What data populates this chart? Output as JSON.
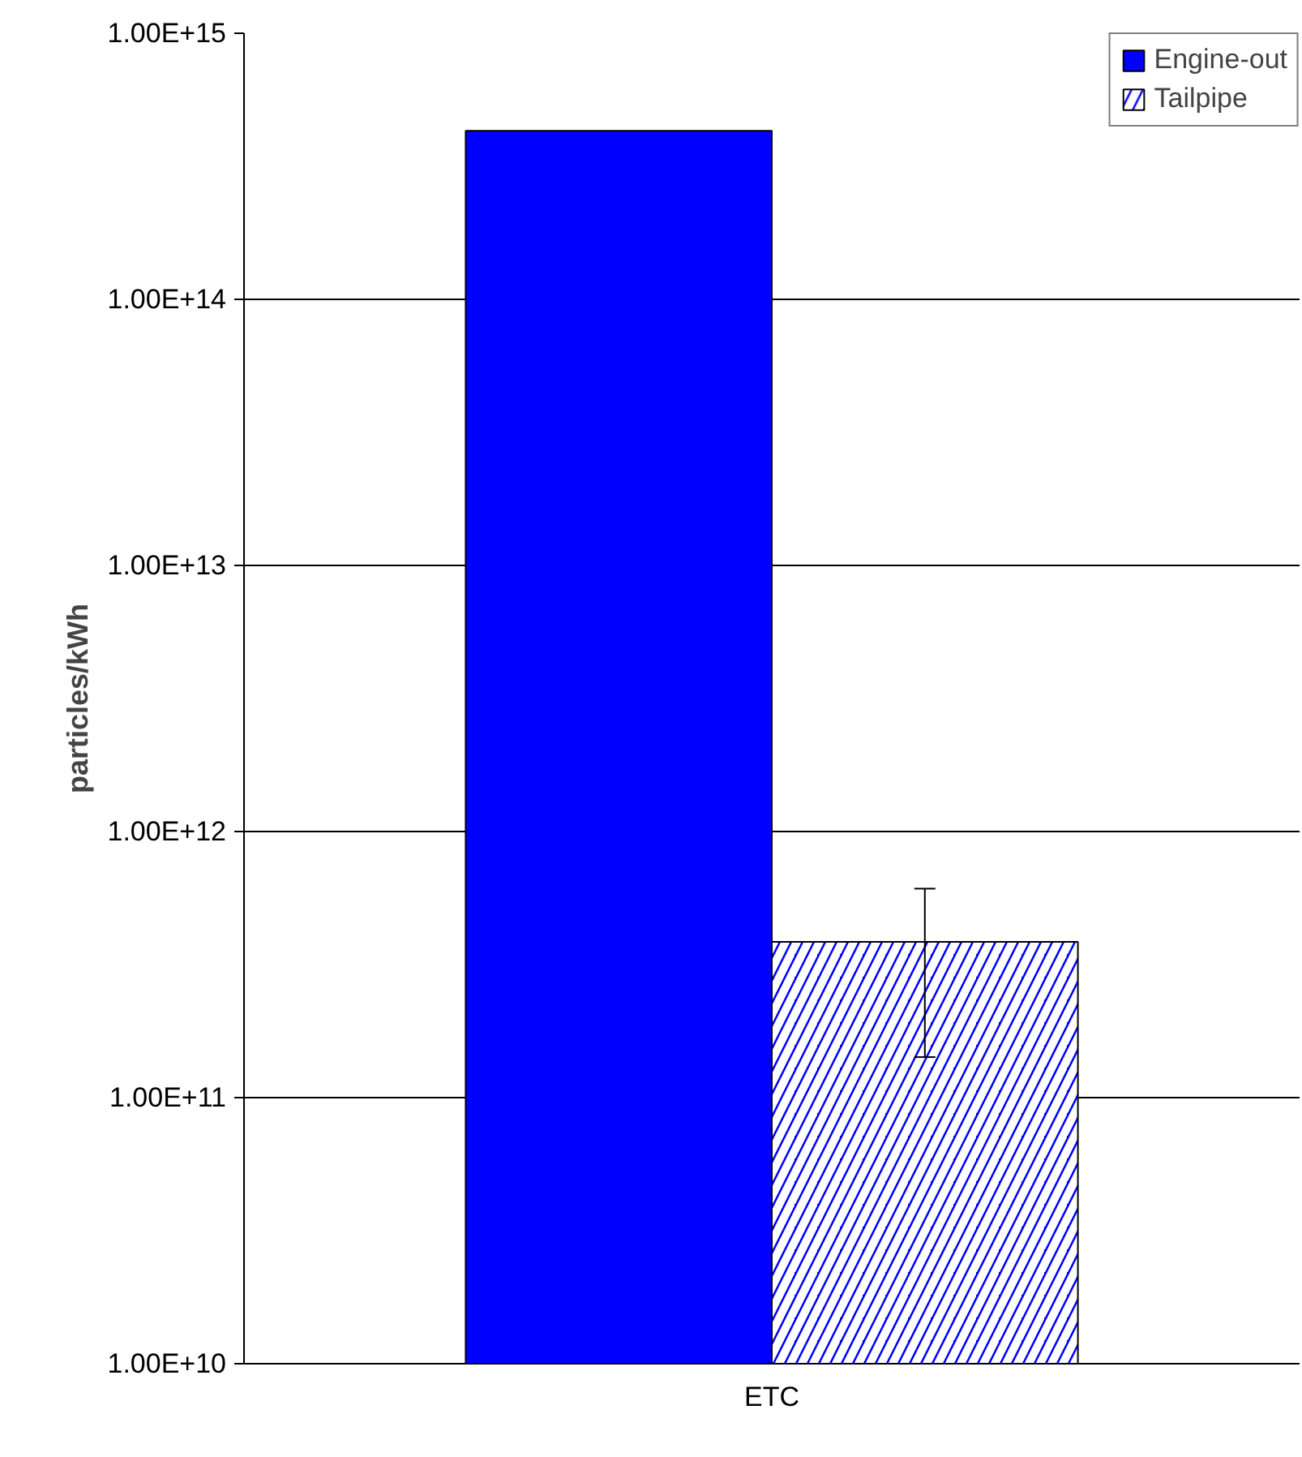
{
  "chart_data": {
    "type": "bar",
    "ylabel": "particles/kWh",
    "categories": [
      "ETC"
    ],
    "series": [
      {
        "name": "Engine-out",
        "color": "#0000ff",
        "values": [
          430000000000000.0
        ]
      },
      {
        "name": "Tailpipe",
        "color": "#0000ff",
        "values": [
          385000000000.0
        ],
        "errors": [
          [
            142000000000.0,
            610000000000.0
          ]
        ]
      }
    ],
    "log": true,
    "ylim": [
      10000000000.0,
      1000000000000000.0
    ],
    "yticks": [
      {
        "value": 10000000000.0,
        "label": "1.00E+10"
      },
      {
        "value": 100000000000.0,
        "label": "1.00E+11"
      },
      {
        "value": 1000000000000.0,
        "label": "1.00E+12"
      },
      {
        "value": 10000000000000.0,
        "label": "1.00E+13"
      },
      {
        "value": 100000000000000.0,
        "label": "1.00E+14"
      },
      {
        "value": 1000000000000000.0,
        "label": "1.00E+15"
      }
    ],
    "grid": "y",
    "legend": "top right"
  }
}
